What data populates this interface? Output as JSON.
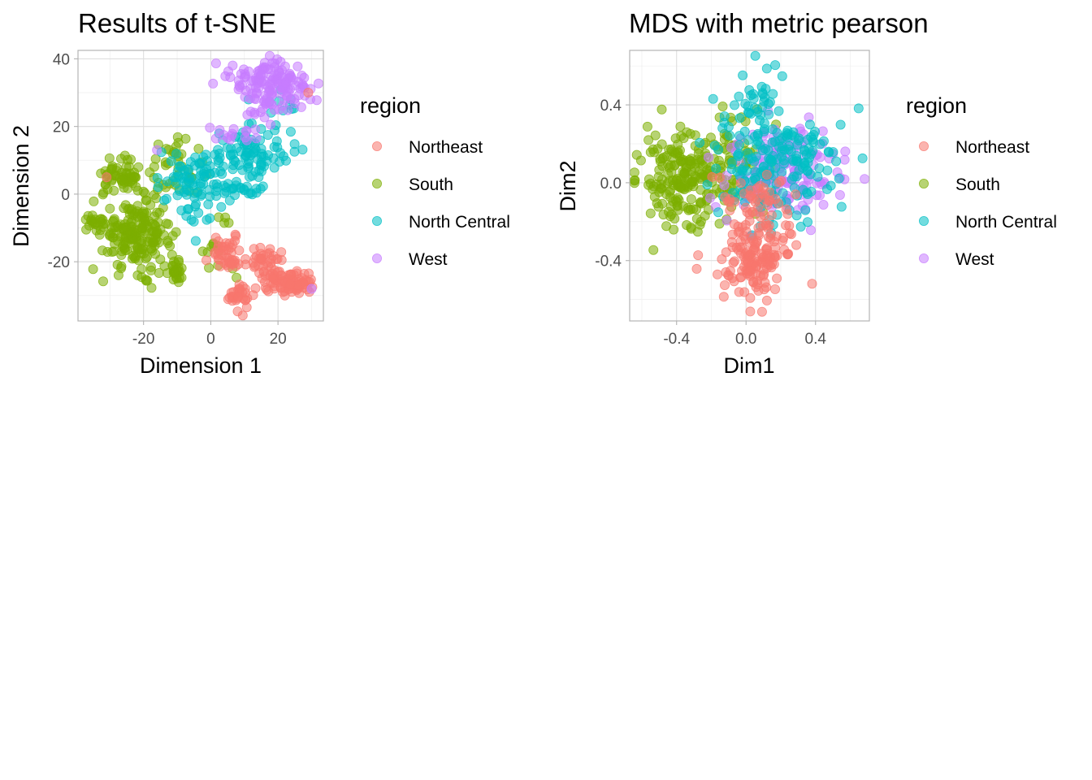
{
  "colors": {
    "Northeast": "#F8766D",
    "South": "#7CAE00",
    "North Central": "#00BFC4",
    "West": "#C77CFF"
  },
  "chart_data": [
    {
      "type": "scatter",
      "title": "Results of t-SNE",
      "xlabel": "Dimension 1",
      "ylabel": "Dimension 2",
      "xlim": [
        -39.5,
        33.5
      ],
      "ylim": [
        -37.5,
        42.5
      ],
      "xticks": [
        -20,
        0,
        20
      ],
      "xtick_labels": [
        "-20",
        "0",
        "20"
      ],
      "yticks": [
        -20,
        0,
        20,
        40
      ],
      "ytick_labels": [
        "-20",
        "0",
        "20",
        "40"
      ],
      "grid": true,
      "legend": {
        "title": "region",
        "position": "right",
        "entries": [
          "Northeast",
          "South",
          "North Central",
          "West"
        ]
      },
      "clusters": [
        {
          "series": "South",
          "cx": -22,
          "cy": -12,
          "sx": 5,
          "sy": 5,
          "n": 190
        },
        {
          "series": "South",
          "cx": -27,
          "cy": 5,
          "sx": 4,
          "sy": 2.5,
          "n": 60
        },
        {
          "series": "South",
          "cx": -34,
          "cy": -9,
          "sx": 1.8,
          "sy": 1.2,
          "n": 20
        },
        {
          "series": "South",
          "cx": -10,
          "cy": 8,
          "sx": 4,
          "sy": 5,
          "n": 40
        },
        {
          "series": "South",
          "cx": -10,
          "cy": -22,
          "sx": 2,
          "sy": 2,
          "n": 25
        },
        {
          "series": "South",
          "cx": 2,
          "cy": -15,
          "sx": 3,
          "sy": 5,
          "n": 15
        },
        {
          "series": "North Central",
          "cx": 12,
          "cy": 12,
          "sx": 6,
          "sy": 4,
          "n": 90
        },
        {
          "series": "North Central",
          "cx": -5,
          "cy": 5,
          "sx": 5,
          "sy": 4,
          "n": 70
        },
        {
          "series": "North Central",
          "cx": 10,
          "cy": 1,
          "sx": 5,
          "sy": 1.2,
          "n": 20
        },
        {
          "series": "North Central",
          "cx": -6,
          "cy": -5,
          "sx": 3,
          "sy": 3,
          "n": 15
        },
        {
          "series": "North Central",
          "cx": 20,
          "cy": 27,
          "sx": 5,
          "sy": 3,
          "n": 10
        },
        {
          "series": "Northeast",
          "cx": 5,
          "cy": -18,
          "sx": 2.5,
          "sy": 3,
          "n": 45
        },
        {
          "series": "Northeast",
          "cx": 16,
          "cy": -20,
          "sx": 3,
          "sy": 2,
          "n": 35
        },
        {
          "series": "Northeast",
          "cx": 25,
          "cy": -26,
          "sx": 3,
          "sy": 2,
          "n": 55
        },
        {
          "series": "Northeast",
          "cx": 9,
          "cy": -30,
          "sx": 2,
          "sy": 2,
          "n": 30
        },
        {
          "series": "Northeast",
          "cx": 20,
          "cy": -25,
          "sx": 3,
          "sy": 2,
          "n": 30
        },
        {
          "series": "West",
          "cx": 15,
          "cy": 34,
          "sx": 4.5,
          "sy": 3,
          "n": 75
        },
        {
          "series": "West",
          "cx": 24,
          "cy": 32,
          "sx": 3.5,
          "sy": 3,
          "n": 55
        },
        {
          "series": "West",
          "cx": 16,
          "cy": 26,
          "sx": 3,
          "sy": 3,
          "n": 20
        },
        {
          "series": "West",
          "cx": 8,
          "cy": 18,
          "sx": 4,
          "sy": 1.5,
          "n": 15
        }
      ],
      "extra_points": [
        {
          "series": "Northeast",
          "x": 29,
          "y": 30
        },
        {
          "series": "Northeast",
          "x": -31,
          "y": 5
        },
        {
          "series": "West",
          "x": 30,
          "y": -28
        },
        {
          "series": "West",
          "x": -16,
          "y": 13
        }
      ]
    },
    {
      "type": "scatter",
      "title": "MDS with metric pearson",
      "xlabel": "Dim1",
      "ylabel": "Dim2",
      "xlim": [
        -0.67,
        0.71
      ],
      "ylim": [
        -0.71,
        0.68
      ],
      "xticks": [
        -0.4,
        0.0,
        0.4
      ],
      "xtick_labels": [
        "-0.4",
        "0.0",
        "0.4"
      ],
      "yticks": [
        -0.4,
        0.0,
        0.4
      ],
      "ytick_labels": [
        "-0.4",
        "0.0",
        "0.4"
      ],
      "grid": true,
      "legend": {
        "title": "region",
        "position": "right",
        "entries": [
          "Northeast",
          "South",
          "North Central",
          "West"
        ]
      },
      "clusters": [
        {
          "series": "South",
          "cx": -0.36,
          "cy": 0.06,
          "sx": 0.12,
          "sy": 0.1,
          "n": 170
        },
        {
          "series": "South",
          "cx": -0.1,
          "cy": 0.08,
          "sx": 0.14,
          "sy": 0.15,
          "n": 80
        },
        {
          "series": "South",
          "cx": -0.4,
          "cy": -0.15,
          "sx": 0.09,
          "sy": 0.08,
          "n": 20
        },
        {
          "series": "West",
          "cx": 0.22,
          "cy": 0.06,
          "sx": 0.16,
          "sy": 0.12,
          "n": 150
        },
        {
          "series": "North Central",
          "cx": 0.18,
          "cy": 0.1,
          "sx": 0.18,
          "sy": 0.16,
          "n": 190
        },
        {
          "series": "North Central",
          "cx": 0.06,
          "cy": 0.45,
          "sx": 0.08,
          "sy": 0.07,
          "n": 25
        },
        {
          "series": "Northeast",
          "cx": 0.06,
          "cy": -0.38,
          "sx": 0.1,
          "sy": 0.1,
          "n": 150
        },
        {
          "series": "Northeast",
          "cx": 0.05,
          "cy": -0.1,
          "sx": 0.1,
          "sy": 0.07,
          "n": 45
        }
      ],
      "extra_points": []
    }
  ]
}
